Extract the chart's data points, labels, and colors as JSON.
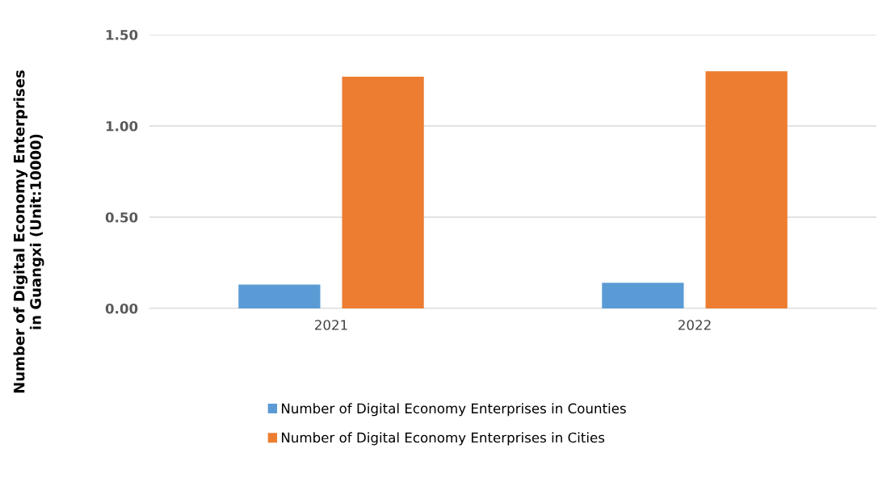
{
  "chart_data": {
    "type": "bar",
    "ylabel": "Number of Digital Economy Enterprises\nin Guangxi (Unit:10000)",
    "categories": [
      "2021",
      "2022"
    ],
    "series": [
      {
        "name": "Number of Digital Economy Enterprises in Counties",
        "color": "#5b9bd5",
        "values": [
          0.13,
          0.14
        ]
      },
      {
        "name": "Number of Digital Economy Enterprises in Cities",
        "color": "#ed7d31",
        "values": [
          1.27,
          1.3
        ]
      }
    ],
    "ylim": [
      0,
      1.5
    ],
    "yticks": [
      {
        "value": 0,
        "label": "0.00"
      },
      {
        "value": 0.5,
        "label": "0.50"
      },
      {
        "value": 1,
        "label": "1.00"
      },
      {
        "value": 1.5,
        "label": "1.50"
      }
    ],
    "grid": "y",
    "legend": "bottom"
  }
}
